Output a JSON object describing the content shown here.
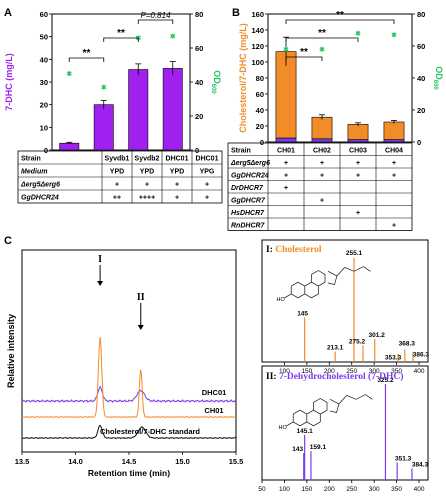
{
  "panels": {
    "A": "A",
    "B": "B",
    "C": "C"
  },
  "chart_data": [
    {
      "id": "A",
      "type": "bar",
      "ylabel": "7-DHC (mg/L)",
      "y2label": "OD600",
      "ylim": [
        0,
        60
      ],
      "yticks": [
        0,
        10,
        20,
        30,
        40,
        50,
        60
      ],
      "y2lim": [
        0,
        80
      ],
      "y2ticks": [
        0,
        20,
        40,
        60,
        80
      ],
      "categories": [
        "Syvdb1",
        "Syvdb2",
        "DHC01",
        "DHC01"
      ],
      "values": [
        3.0,
        20.0,
        35.5,
        36.0
      ],
      "errors": [
        0.4,
        1.8,
        2.5,
        3.0
      ],
      "od600": [
        45,
        37,
        66,
        67
      ],
      "bar_color": "#a020f0",
      "od_color": "#22c55e",
      "significance": [
        {
          "from": 0,
          "to": 1,
          "label": "**"
        },
        {
          "from": 1,
          "to": 2,
          "label": "**"
        },
        {
          "from": 2,
          "to": 3,
          "label": "P=0.814"
        }
      ],
      "table": {
        "header": [
          "Strain",
          "Syvdb1",
          "Syvdb2",
          "DHC01",
          "DHC01"
        ],
        "rows": [
          [
            "Medium",
            "YPD",
            "YPD",
            "YPD",
            "YPG"
          ],
          [
            "Δerg5Δerg6",
            "+",
            "+",
            "+",
            "+"
          ],
          [
            "GgDHCR24",
            "++",
            "++++",
            "+",
            "+"
          ]
        ]
      }
    },
    {
      "id": "B",
      "type": "bar",
      "ylabel": "Cholesterol/7-DHC (mg/L)",
      "y2label": "OD600",
      "ylim": [
        0,
        160
      ],
      "yticks": [
        0,
        20,
        40,
        60,
        80,
        100,
        120,
        140,
        160
      ],
      "y2lim": [
        0,
        80
      ],
      "y2ticks": [
        0,
        20,
        40,
        60,
        80
      ],
      "categories": [
        "CH01",
        "CH02",
        "CH03",
        "CH04"
      ],
      "series": [
        {
          "name": "7-DHC",
          "values": [
            5,
            4,
            3,
            3
          ],
          "color": "#7c3aed"
        },
        {
          "name": "Cholesterol",
          "values": [
            108,
            27,
            19,
            22
          ],
          "color": "#f28c28"
        }
      ],
      "errors": [
        18,
        3,
        2,
        2
      ],
      "od600": [
        58,
        58,
        68,
        67
      ],
      "od_color": "#22c55e",
      "significance": [
        {
          "from": 0,
          "to": 1,
          "label": "**"
        },
        {
          "from": 0,
          "to": 2,
          "label": "**"
        },
        {
          "from": 0,
          "to": 3,
          "label": "**"
        }
      ],
      "table": {
        "header": [
          "Strain",
          "CH01",
          "CH02",
          "CH03",
          "CH04"
        ],
        "rows": [
          [
            "Δerg5Δerg6",
            "+",
            "+",
            "+",
            "+"
          ],
          [
            "GgDHCR24",
            "+",
            "+",
            "+",
            "+"
          ],
          [
            "DrDHCR7",
            "+",
            "",
            "",
            ""
          ],
          [
            "GgDHCR7",
            "",
            "+",
            "",
            ""
          ],
          [
            "HsDHCR7",
            "",
            "",
            "+",
            ""
          ],
          [
            "RnDHCR7",
            "",
            "",
            "",
            "+"
          ]
        ]
      }
    },
    {
      "id": "C",
      "type": "line",
      "xlabel": "Retention time (min)",
      "ylabel": "Relative intensity",
      "xlim": [
        13.5,
        15.5
      ],
      "xticks": [
        13.5,
        14.0,
        14.5,
        15.0,
        15.5
      ],
      "series": [
        {
          "name": "DHC01",
          "color": "#7c3aed",
          "baseline": 0.88,
          "peaks": [
            [
              14.23,
              0.32,
              0.022
            ],
            [
              14.61,
              0.25,
              0.035
            ]
          ]
        },
        {
          "name": "CH01",
          "color": "#f28c28",
          "baseline": 0.5,
          "peaks": [
            [
              14.23,
              1.9,
              0.016
            ],
            [
              14.61,
              1.15,
              0.013
            ]
          ]
        },
        {
          "name": "Cholesterol/7-DHC standard",
          "color": "#111111",
          "baseline": 0.0,
          "peaks": [
            [
              14.23,
              0.3,
              0.02
            ],
            [
              14.62,
              0.26,
              0.035
            ]
          ]
        }
      ],
      "annotations": [
        {
          "label": "I",
          "x": 14.23
        },
        {
          "label": "II",
          "x": 14.61
        }
      ]
    },
    {
      "id": "MS1",
      "type": "bar",
      "title": "I: Cholesterol",
      "title_color": "#f28c28",
      "xlim": [
        50,
        420
      ],
      "xticks": [
        100,
        150,
        200,
        250,
        300,
        350,
        400
      ],
      "bar_color": "#f28c28",
      "peaks": [
        {
          "mz": 145,
          "intensity": 0.43,
          "label": "145"
        },
        {
          "mz": 213.1,
          "intensity": 0.1,
          "label": "213.1"
        },
        {
          "mz": 255.1,
          "intensity": 1.0,
          "label": "255.1"
        },
        {
          "mz": 275.2,
          "intensity": 0.16,
          "label": "275.2"
        },
        {
          "mz": 301.2,
          "intensity": 0.22,
          "label": "301.2"
        },
        {
          "mz": 353.3,
          "intensity": 0.08,
          "label": "353.3"
        },
        {
          "mz": 368.3,
          "intensity": 0.12,
          "label": "368.3"
        },
        {
          "mz": 386.3,
          "intensity": 0.09,
          "label": "386.3"
        }
      ]
    },
    {
      "id": "MS2",
      "type": "bar",
      "title": "II: 7-Dehydrocholesterol (7-DHC)",
      "title_color": "#7c3aed",
      "xlim": [
        50,
        420
      ],
      "xticks": [
        50,
        100,
        150,
        200,
        250,
        300,
        350,
        400
      ],
      "bar_color": "#7c3aed",
      "peaks": [
        {
          "mz": 143,
          "intensity": 0.28,
          "label": "143"
        },
        {
          "mz": 145.1,
          "intensity": 0.47,
          "label": "145.1"
        },
        {
          "mz": 159.1,
          "intensity": 0.3,
          "label": "159.1"
        },
        {
          "mz": 325.2,
          "intensity": 1.0,
          "label": "325.2"
        },
        {
          "mz": 351.3,
          "intensity": 0.18,
          "label": "351.3"
        },
        {
          "mz": 384.3,
          "intensity": 0.12,
          "label": "384.3"
        }
      ]
    }
  ]
}
